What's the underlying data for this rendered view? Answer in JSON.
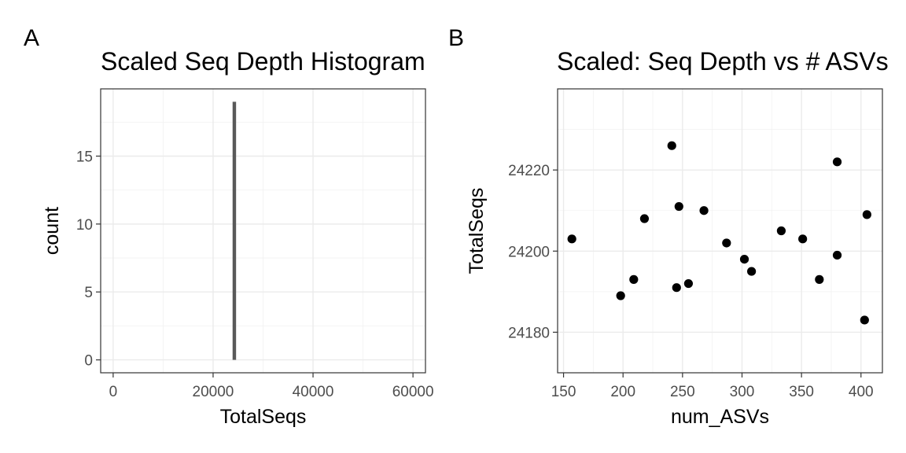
{
  "chart_data": [
    {
      "tag": "A",
      "type": "bar",
      "title": "Scaled Seq Depth Histogram",
      "xlabel": "TotalSeqs",
      "ylabel": "count",
      "xlim": [
        -2500,
        62500
      ],
      "ylim": [
        -0.95,
        19.95
      ],
      "x_ticks": [
        0,
        20000,
        40000,
        60000
      ],
      "x_tick_labels": [
        "0",
        "20000",
        "40000",
        "60000"
      ],
      "y_ticks": [
        0,
        5,
        10,
        15
      ],
      "y_tick_labels": [
        "0",
        "5",
        "10",
        "15"
      ],
      "bars": [
        {
          "x_start": 23900,
          "x_end": 24600,
          "count": 19
        }
      ],
      "bar_color": "#595959",
      "grid": true
    },
    {
      "tag": "B",
      "type": "scatter",
      "title": "Scaled: Seq Depth vs # ASVs",
      "xlabel": "num_ASVs",
      "ylabel": "TotalSeqs",
      "xlim": [
        145,
        418
      ],
      "ylim": [
        24170,
        24240
      ],
      "x_ticks": [
        150,
        200,
        250,
        300,
        350,
        400
      ],
      "x_tick_labels": [
        "150",
        "200",
        "250",
        "300",
        "350",
        "400"
      ],
      "y_ticks": [
        24180,
        24200,
        24220
      ],
      "y_tick_labels": [
        "24180",
        "24200",
        "24220"
      ],
      "point_color": "#000000",
      "grid": true,
      "points": [
        {
          "x": 157,
          "y": 24203
        },
        {
          "x": 198,
          "y": 24189
        },
        {
          "x": 209,
          "y": 24193
        },
        {
          "x": 218,
          "y": 24208
        },
        {
          "x": 241,
          "y": 24226
        },
        {
          "x": 245,
          "y": 24191
        },
        {
          "x": 247,
          "y": 24211
        },
        {
          "x": 255,
          "y": 24192
        },
        {
          "x": 268,
          "y": 24210
        },
        {
          "x": 287,
          "y": 24202
        },
        {
          "x": 302,
          "y": 24198
        },
        {
          "x": 308,
          "y": 24195
        },
        {
          "x": 333,
          "y": 24205
        },
        {
          "x": 351,
          "y": 24203
        },
        {
          "x": 365,
          "y": 24193
        },
        {
          "x": 380,
          "y": 24222
        },
        {
          "x": 380,
          "y": 24199
        },
        {
          "x": 403,
          "y": 24183
        },
        {
          "x": 405,
          "y": 24209
        }
      ]
    }
  ]
}
